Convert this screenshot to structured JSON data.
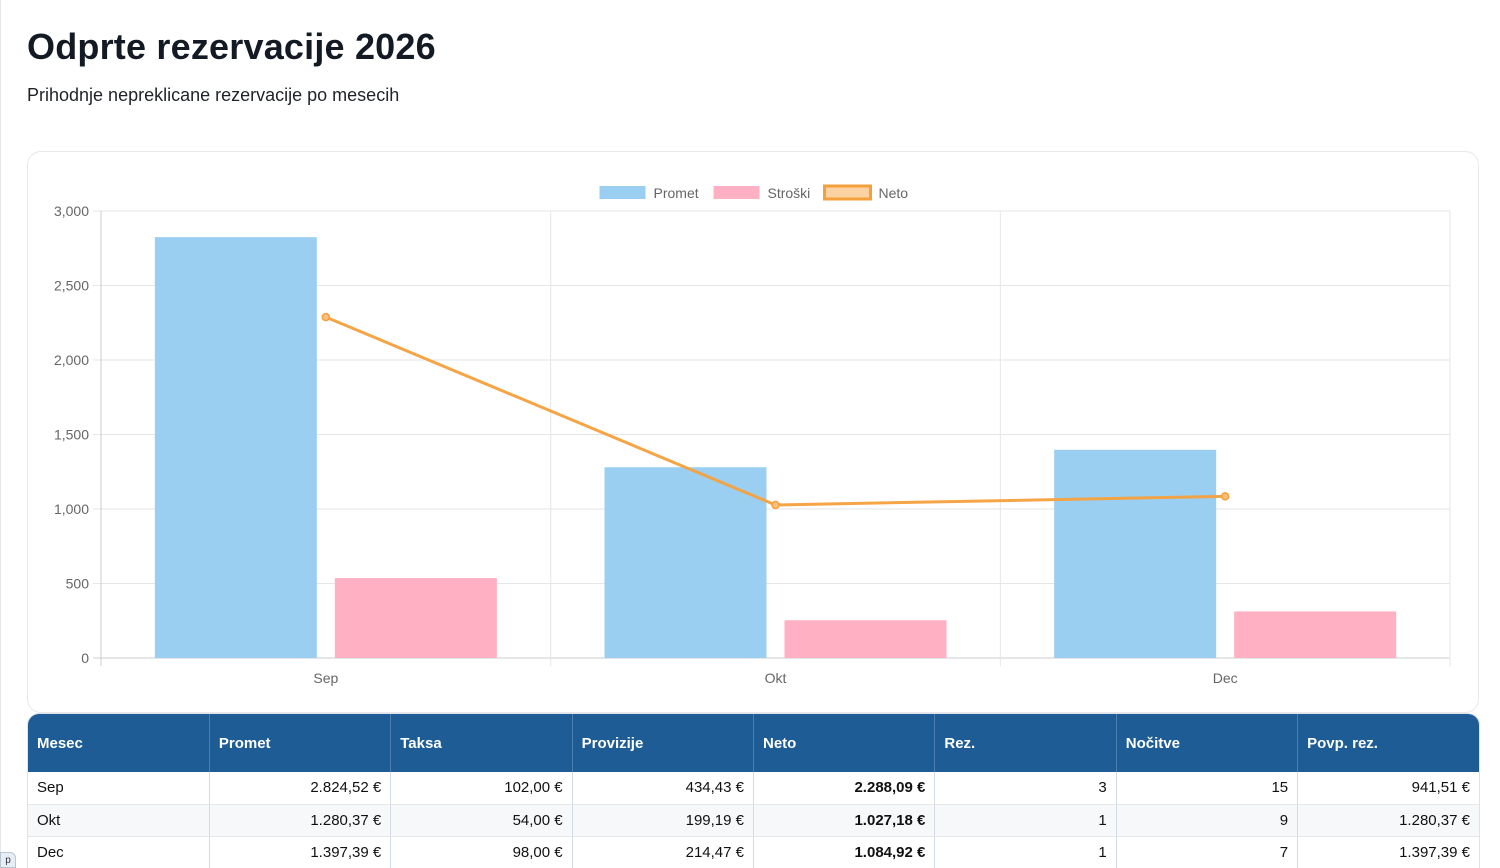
{
  "header": {
    "title": "Odprte rezervacije 2026",
    "subtitle": "Prihodnje nepreklicane rezervacije po mesecih"
  },
  "colors": {
    "promet": "#9bcff2",
    "stroski": "#ffb0c2",
    "neto": "#f5a03c",
    "table_header": "#1e5c96"
  },
  "chart_data": {
    "type": "bar",
    "categories": [
      "Sep",
      "Okt",
      "Dec"
    ],
    "series": [
      {
        "name": "Promet",
        "type": "bar",
        "values": [
          2824.52,
          1280.37,
          1397.39
        ]
      },
      {
        "name": "Stroški",
        "type": "bar",
        "values": [
          536.43,
          253.19,
          312.47
        ]
      },
      {
        "name": "Neto",
        "type": "line",
        "values": [
          2288.09,
          1027.18,
          1084.92
        ]
      }
    ],
    "y_ticks": [
      "0",
      "500",
      "1,000",
      "1,500",
      "2,000",
      "2,500",
      "3,000"
    ],
    "ylim": [
      0,
      3000
    ],
    "grid": true,
    "legend": "top-center"
  },
  "table": {
    "headers": [
      "Mesec",
      "Promet",
      "Taksa",
      "Provizije",
      "Neto",
      "Rez.",
      "Nočitve",
      "Povp. rez."
    ],
    "rows": [
      [
        "Sep",
        "2.824,52 €",
        "102,00 €",
        "434,43 €",
        "2.288,09 €",
        "3",
        "15",
        "941,51 €"
      ],
      [
        "Okt",
        "1.280,37 €",
        "54,00 €",
        "199,19 €",
        "1.027,18 €",
        "1",
        "9",
        "1.280,37 €"
      ],
      [
        "Dec",
        "1.397,39 €",
        "98,00 €",
        "214,47 €",
        "1.084,92 €",
        "1",
        "7",
        "1.397,39 €"
      ]
    ]
  },
  "corner_tab": {
    "label": "p"
  }
}
